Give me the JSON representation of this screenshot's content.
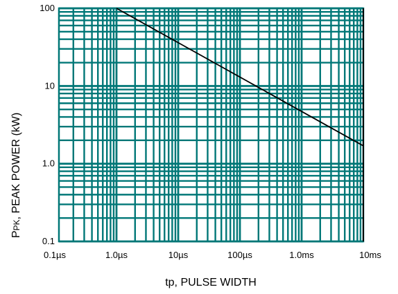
{
  "chart_data": {
    "type": "line",
    "x_scale": "log",
    "y_scale": "log",
    "xlim": [
      "0.1 µs",
      "10 ms"
    ],
    "ylim": [
      0.1,
      100
    ],
    "xlabel": "tp, PULSE WIDTH",
    "ylabel": {
      "symbol": "P",
      "subscript": "PK",
      "text": ", PEAK POWER (kW)"
    },
    "x_tick_labels": [
      "0.1µs",
      "1.0µs",
      "10µs",
      "100µs",
      "1.0ms",
      "10ms"
    ],
    "y_tick_labels": [
      "0.1",
      "1.0",
      "10",
      "100"
    ],
    "grid": true,
    "series": [
      {
        "x": [
          "1.0 µs",
          "10 ms"
        ],
        "y": [
          100,
          1.7
        ],
        "color": "#000000"
      }
    ],
    "colors": {
      "grid": "#007777",
      "background": "#ffffff"
    }
  }
}
